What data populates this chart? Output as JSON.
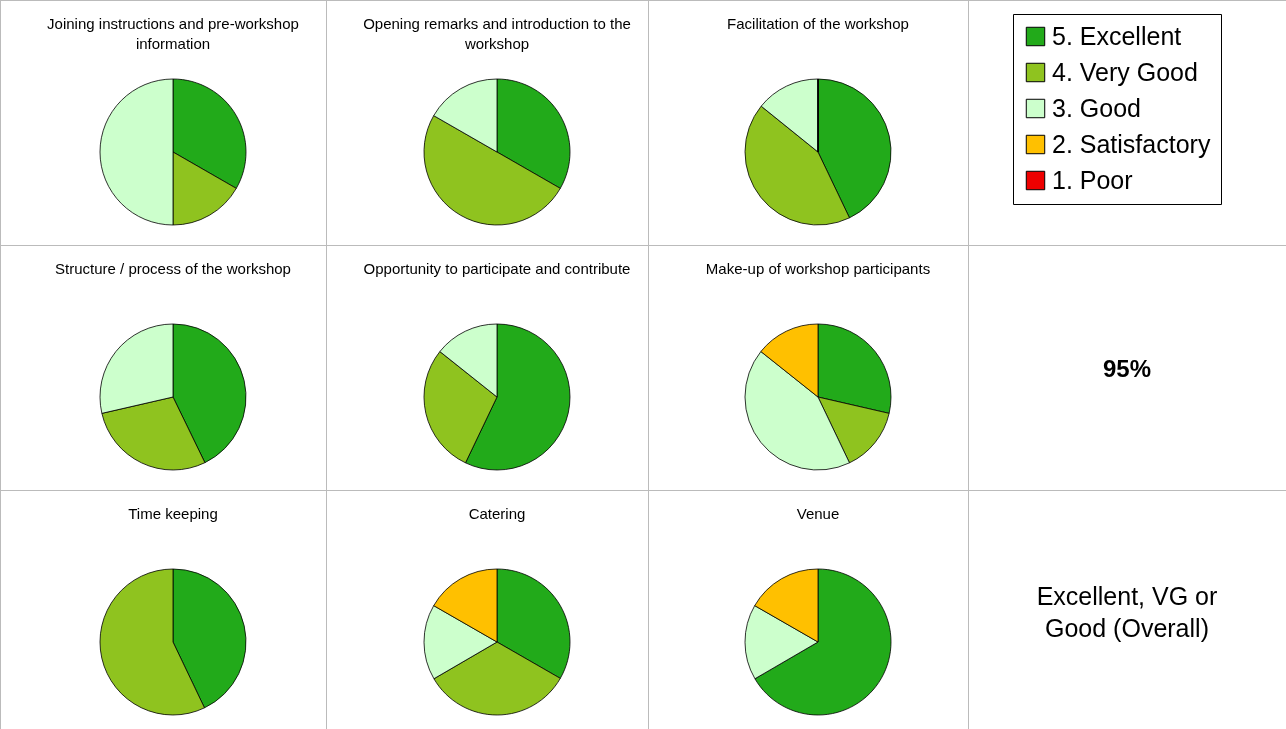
{
  "chart_data": [
    {
      "type": "pie",
      "title": "Joining instructions and pre-workshop information",
      "categories": [
        null,
        null,
        null
      ],
      "values": [
        33.3,
        16.7,
        50
      ],
      "colors": [
        "#22aa1a",
        "#8fc31f",
        "#ccffcc"
      ]
    },
    {
      "type": "pie",
      "title": "Opening remarks and introduction to the workshop",
      "categories": [
        null,
        null,
        null
      ],
      "values": [
        33.3,
        50,
        16.7
      ],
      "colors": [
        "#22aa1a",
        "#8fc31f",
        "#ccffcc"
      ]
    },
    {
      "type": "pie",
      "title": "Facilitation of the workshop",
      "categories": [
        "5. Excellent",
        "4. Very Good",
        "3. Good",
        "2. Satisfactory",
        "1. Poor"
      ],
      "values": [
        42.9,
        42.9,
        14.2,
        0,
        0
      ],
      "colors": [
        "#22aa1a",
        "#8fc31f",
        "#ccffcc",
        "#ffc000",
        "#ee0000"
      ],
      "legend": "right"
    },
    {
      "type": "pie",
      "title": "Structure / process of the workshop",
      "categories": [
        null,
        null,
        null
      ],
      "values": [
        42.8,
        28.6,
        28.6
      ],
      "colors": [
        "#22aa1a",
        "#8fc31f",
        "#ccffcc"
      ]
    },
    {
      "type": "pie",
      "title": "Opportunity to participate and contribute",
      "categories": [
        null,
        null,
        null
      ],
      "values": [
        57.1,
        28.6,
        14.3
      ],
      "colors": [
        "#22aa1a",
        "#8fc31f",
        "#ccffcc"
      ]
    },
    {
      "type": "pie",
      "title": "Make-up of workshop participants",
      "categories": [
        null,
        null,
        null,
        null
      ],
      "values": [
        28.6,
        14.3,
        42.8,
        14.3
      ],
      "colors": [
        "#22aa1a",
        "#8fc31f",
        "#ccffcc",
        "#ffc000"
      ]
    },
    {
      "type": "pie",
      "title": "Time keeping",
      "categories": [
        null,
        null
      ],
      "values": [
        42.9,
        57.1
      ],
      "colors": [
        "#22aa1a",
        "#8fc31f"
      ]
    },
    {
      "type": "pie",
      "title": "Catering",
      "categories": [
        null,
        null,
        null,
        null
      ],
      "values": [
        33.3,
        33.3,
        16.7,
        16.7
      ],
      "colors": [
        "#22aa1a",
        "#8fc31f",
        "#ccffcc",
        "#ffc000"
      ]
    },
    {
      "type": "pie",
      "title": "Venue",
      "categories": [
        null,
        null,
        null
      ],
      "values": [
        66.6,
        16.7,
        16.7
      ],
      "colors": [
        "#22aa1a",
        "#ccffcc",
        "#ffc000"
      ]
    },
    {
      "type": "other",
      "title": "95%",
      "annotations": [
        "Excellent, VG or Good (Overall)"
      ]
    }
  ]
}
